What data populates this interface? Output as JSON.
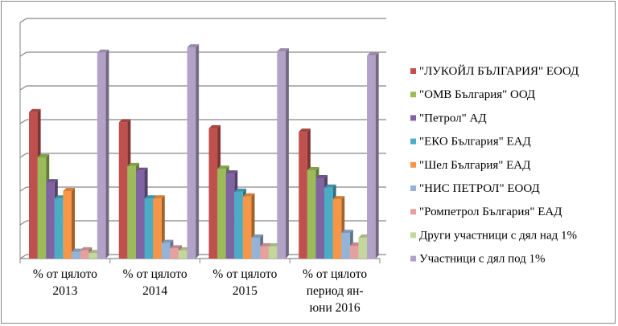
{
  "chart_data": {
    "type": "bar",
    "title": "",
    "xlabel": "",
    "ylabel": "",
    "ylim": [
      0,
      35
    ],
    "grid": true,
    "legend_position": "right",
    "categories": [
      [
        "% от цялото",
        "2013"
      ],
      [
        "% от цялото",
        "2014"
      ],
      [
        "% от цялото",
        "2015"
      ],
      [
        "% от цялото",
        "период ян-",
        "юни 2016"
      ]
    ],
    "series": [
      {
        "name": "\"ЛУКОЙЛ БЪЛГАРИЯ\" ЕООД",
        "color": "#c0504d",
        "values": [
          21.7,
          20.2,
          19.3,
          18.8
        ]
      },
      {
        "name": "\"ОМВ България\" ООД",
        "color": "#9bbb59",
        "values": [
          15.0,
          13.7,
          13.3,
          13.1
        ]
      },
      {
        "name": "\"Петрол\" АД",
        "color": "#8064a2",
        "values": [
          11.3,
          13.0,
          12.6,
          11.9
        ]
      },
      {
        "name": "\"ЕКО България\" ЕАД",
        "color": "#4bacc6",
        "values": [
          8.9,
          8.9,
          9.9,
          10.5
        ]
      },
      {
        "name": "\"Шел България\" ЕАД",
        "color": "#f79646",
        "values": [
          10.0,
          8.9,
          9.2,
          8.8
        ]
      },
      {
        "name": "\"НИС ПЕТРОЛ\" ЕООД",
        "color": "#95b3d7",
        "values": [
          1.0,
          2.3,
          3.1,
          3.8
        ]
      },
      {
        "name": "\"Ромпетрол България\" ЕАД",
        "color": "#e6a0a0",
        "values": [
          1.2,
          1.5,
          1.8,
          1.9
        ]
      },
      {
        "name": "Други участници с дял над 1%",
        "color": "#c3d69b",
        "values": [
          0.8,
          1.2,
          1.8,
          3.1
        ]
      },
      {
        "name": "Участници с дял под 1%",
        "color": "#b3a2c7",
        "values": [
          30.5,
          31.3,
          30.7,
          30.1
        ]
      }
    ]
  }
}
